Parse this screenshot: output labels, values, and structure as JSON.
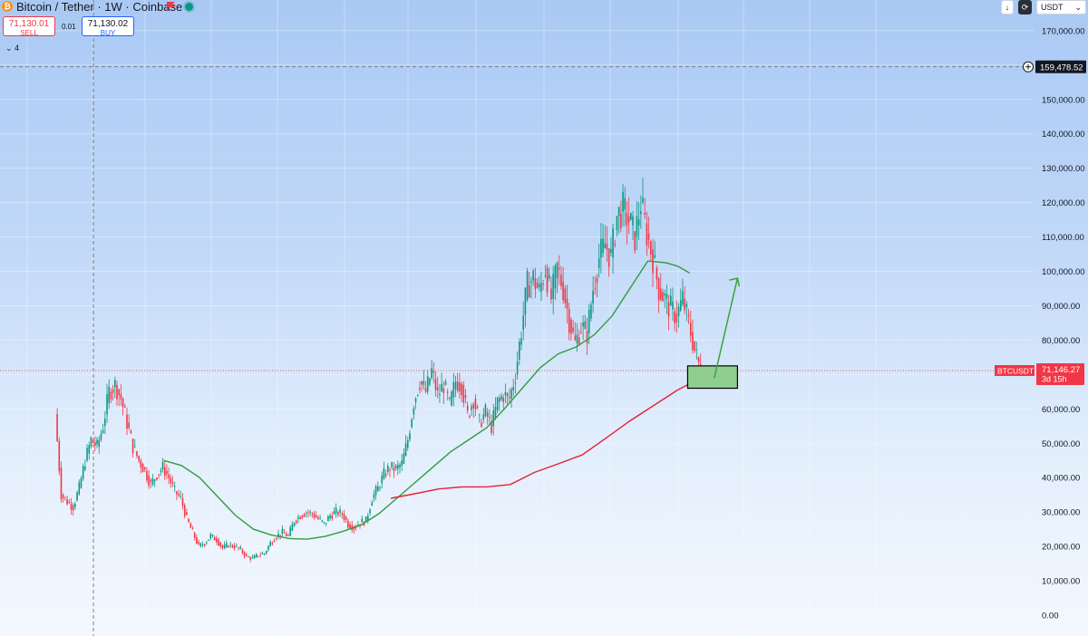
{
  "header": {
    "symbol_title": "Bitcoin / Tether · 1W · Coinbase",
    "sell_price": "71,130.01",
    "sell_label": "SELL",
    "spread": "0.01",
    "buy_price": "71,130.02",
    "buy_label": "BUY",
    "indicators_count": "4",
    "currency": "USDT",
    "down_icon": "↓",
    "chevron_icon": "⌄"
  },
  "colors": {
    "up": "#089981",
    "down": "#f23645",
    "ma_green": "#2e9e3e",
    "ma_red": "#e8203a",
    "arrow": "#3ea33e",
    "target_zone": "#8fce8f"
  },
  "chart_data": {
    "type": "candlestick",
    "symbol": "BTCUSDT",
    "timeframe": "1W",
    "ylim": [
      0,
      175000
    ],
    "yticks": [
      0,
      10000,
      20000,
      30000,
      40000,
      50000,
      60000,
      70000,
      80000,
      90000,
      100000,
      110000,
      120000,
      130000,
      140000,
      150000,
      160000,
      170000
    ],
    "ytick_labels": [
      "0.00",
      "10,000.00",
      "20,000.00",
      "30,000.00",
      "40,000.00",
      "50,000.00",
      "60,000.00",
      "70,000.00",
      "80,000.00",
      "90,000.00",
      "100,000.00",
      "110,000.00",
      "120,000.00",
      "130,000.00",
      "140,000.00",
      "150,000.00",
      "160,000.00",
      "170,000.00"
    ],
    "crosshair_price": "159,478.52",
    "crosshair_value": 159478.52,
    "last_price_label": "71,146.27",
    "last_price_value": 71146.27,
    "last_price_countdown": "3d 15h",
    "close_series": [
      [
        0,
        58500
      ],
      [
        3,
        35000
      ],
      [
        6,
        33000
      ],
      [
        9,
        31500
      ],
      [
        12,
        37000
      ],
      [
        15,
        45000
      ],
      [
        18,
        51000
      ],
      [
        21,
        49000
      ],
      [
        24,
        55000
      ],
      [
        27,
        65000
      ],
      [
        30,
        67000
      ],
      [
        33,
        63000
      ],
      [
        36,
        56000
      ],
      [
        39,
        49000
      ],
      [
        42,
        45000
      ],
      [
        45,
        42000
      ],
      [
        48,
        38000
      ],
      [
        51,
        41000
      ],
      [
        54,
        43000
      ],
      [
        57,
        40000
      ],
      [
        60,
        36000
      ],
      [
        63,
        34000
      ],
      [
        66,
        28000
      ],
      [
        69,
        24000
      ],
      [
        72,
        20000
      ],
      [
        75,
        21000
      ],
      [
        78,
        23000
      ],
      [
        81,
        22000
      ],
      [
        84,
        19500
      ],
      [
        87,
        20500
      ],
      [
        90,
        20000
      ],
      [
        93,
        19000
      ],
      [
        96,
        17000
      ],
      [
        99,
        16500
      ],
      [
        102,
        17500
      ],
      [
        105,
        18000
      ],
      [
        108,
        21000
      ],
      [
        111,
        23000
      ],
      [
        114,
        24000
      ],
      [
        117,
        23000
      ],
      [
        120,
        27500
      ],
      [
        123,
        29000
      ],
      [
        126,
        30000
      ],
      [
        129,
        29500
      ],
      [
        132,
        28000
      ],
      [
        135,
        26500
      ],
      [
        138,
        29000
      ],
      [
        141,
        30000
      ],
      [
        144,
        29500
      ],
      [
        147,
        26500
      ],
      [
        150,
        25500
      ],
      [
        153,
        27000
      ],
      [
        156,
        27500
      ],
      [
        159,
        34000
      ],
      [
        162,
        37000
      ],
      [
        165,
        41000
      ],
      [
        168,
        43000
      ],
      [
        171,
        42500
      ],
      [
        174,
        44000
      ],
      [
        177,
        51000
      ],
      [
        180,
        62000
      ],
      [
        183,
        68000
      ],
      [
        186,
        65000
      ],
      [
        189,
        71000
      ],
      [
        192,
        64000
      ],
      [
        195,
        67000
      ],
      [
        198,
        61000
      ],
      [
        201,
        68000
      ],
      [
        204,
        67000
      ],
      [
        207,
        58000
      ],
      [
        210,
        63000
      ],
      [
        213,
        56000
      ],
      [
        216,
        59000
      ],
      [
        219,
        55000
      ],
      [
        222,
        62000
      ],
      [
        225,
        64000
      ],
      [
        228,
        63000
      ],
      [
        231,
        70000
      ],
      [
        234,
        83000
      ],
      [
        237,
        96000
      ],
      [
        240,
        98000
      ],
      [
        243,
        94000
      ],
      [
        246,
        101000
      ],
      [
        249,
        92000
      ],
      [
        252,
        101000
      ],
      [
        255,
        95000
      ],
      [
        258,
        86000
      ],
      [
        261,
        79000
      ],
      [
        264,
        84000
      ],
      [
        267,
        82000
      ],
      [
        270,
        95000
      ],
      [
        273,
        104000
      ],
      [
        276,
        108000
      ],
      [
        279,
        104000
      ],
      [
        282,
        116000
      ],
      [
        285,
        118000
      ],
      [
        288,
        115000
      ],
      [
        291,
        110000
      ],
      [
        294,
        120000
      ],
      [
        297,
        111000
      ],
      [
        300,
        104000
      ],
      [
        303,
        95000
      ],
      [
        306,
        92000
      ],
      [
        309,
        89000
      ],
      [
        312,
        87000
      ],
      [
        315,
        92000
      ],
      [
        318,
        85000
      ],
      [
        321,
        77000
      ],
      [
        324,
        71146
      ]
    ],
    "moving_averages": [
      {
        "color": "#2e9e3e",
        "points": [
          [
            54,
            45000
          ],
          [
            63,
            43500
          ],
          [
            72,
            40000
          ],
          [
            81,
            34500
          ],
          [
            90,
            29000
          ],
          [
            99,
            25000
          ],
          [
            108,
            23300
          ],
          [
            117,
            22300
          ],
          [
            126,
            22100
          ],
          [
            135,
            22900
          ],
          [
            144,
            24400
          ],
          [
            153,
            26200
          ],
          [
            162,
            29500
          ],
          [
            171,
            34000
          ],
          [
            180,
            38500
          ],
          [
            189,
            43000
          ],
          [
            198,
            47500
          ],
          [
            207,
            51000
          ],
          [
            216,
            54500
          ],
          [
            225,
            60000
          ],
          [
            234,
            66000
          ],
          [
            243,
            72000
          ],
          [
            252,
            76000
          ],
          [
            261,
            78000
          ],
          [
            270,
            81500
          ],
          [
            279,
            87000
          ],
          [
            288,
            95000
          ],
          [
            297,
            103000
          ],
          [
            306,
            102500
          ],
          [
            312,
            101500
          ],
          [
            318,
            99500
          ]
        ]
      },
      {
        "color": "#e8203a",
        "points": [
          [
            168,
            34000
          ],
          [
            180,
            35300
          ],
          [
            192,
            36700
          ],
          [
            204,
            37300
          ],
          [
            216,
            37300
          ],
          [
            228,
            38000
          ],
          [
            240,
            41500
          ],
          [
            252,
            44000
          ],
          [
            264,
            46600
          ],
          [
            276,
            51500
          ],
          [
            288,
            56500
          ],
          [
            300,
            61000
          ],
          [
            312,
            65500
          ],
          [
            318,
            67300
          ],
          [
            324,
            69000
          ]
        ]
      }
    ],
    "target_zone": {
      "x_start": 317,
      "x_end": 342,
      "y_low": 66000,
      "y_high": 72500
    },
    "projection_arrow": {
      "from": [
        324,
        69000
      ],
      "to": [
        342,
        98000
      ]
    },
    "legend": "none",
    "grid": true
  }
}
